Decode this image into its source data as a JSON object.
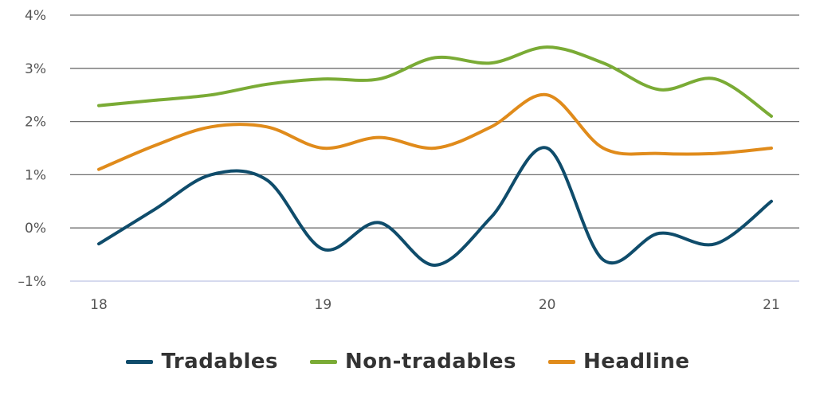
{
  "chart_data": {
    "type": "line",
    "x": [
      18.0,
      18.25,
      18.5,
      18.75,
      19.0,
      19.25,
      19.5,
      19.75,
      20.0,
      20.25,
      20.5,
      20.75,
      21.0
    ],
    "series": [
      {
        "name": "Tradables",
        "color": "#0f4c6b",
        "values": [
          -0.3,
          0.35,
          1.0,
          0.9,
          -0.4,
          0.1,
          -0.7,
          0.2,
          1.5,
          -0.6,
          -0.1,
          -0.3,
          0.5
        ]
      },
      {
        "name": "Non-tradables",
        "color": "#7aab35",
        "values": [
          2.3,
          2.4,
          2.5,
          2.7,
          2.8,
          2.8,
          3.2,
          3.1,
          3.4,
          3.1,
          2.6,
          2.8,
          2.1
        ]
      },
      {
        "name": "Headline",
        "color": "#e08b1b",
        "values": [
          1.1,
          1.55,
          1.9,
          1.9,
          1.5,
          1.7,
          1.5,
          1.9,
          2.5,
          1.5,
          1.4,
          1.4,
          1.5
        ]
      }
    ],
    "xticks": [
      18,
      19,
      20,
      21
    ],
    "xtick_labels": [
      "18",
      "19",
      "20",
      "21"
    ],
    "yticks": [
      -1,
      0,
      1,
      2,
      3,
      4
    ],
    "ytick_labels": [
      "–1%",
      "0%",
      "1%",
      "2%",
      "3%",
      "4%"
    ],
    "xlim": [
      18,
      21
    ],
    "ylim": [
      -1,
      4
    ],
    "grid": true,
    "legend_position": "bottom"
  }
}
